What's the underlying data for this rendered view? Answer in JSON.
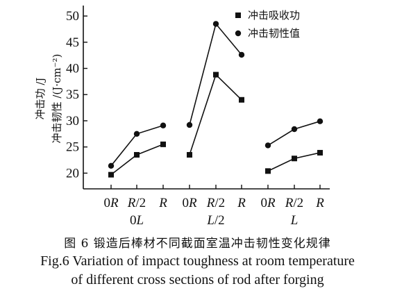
{
  "chart_data": {
    "type": "line",
    "ylabel_lines": [
      "冲击功 /J",
      "冲击韧性 /(J·cm⁻²)"
    ],
    "ylim": [
      17,
      52
    ],
    "yticks": [
      20,
      25,
      30,
      35,
      40,
      45,
      50
    ],
    "groups": [
      {
        "label": "0L",
        "categories": [
          "0R",
          "R/2",
          "R"
        ]
      },
      {
        "label": "L/2",
        "categories": [
          "0R",
          "R/2",
          "R"
        ]
      },
      {
        "label": "L",
        "categories": [
          "0R",
          "R/2",
          "R"
        ]
      }
    ],
    "series": [
      {
        "name": "冲击吸收功",
        "marker": "square",
        "values": [
          [
            19.7,
            23.5,
            25.5
          ],
          [
            23.5,
            38.8,
            34.0
          ],
          [
            20.4,
            22.8,
            23.9
          ]
        ]
      },
      {
        "name": "冲击韧性值",
        "marker": "circle",
        "values": [
          [
            21.4,
            27.5,
            29.1
          ],
          [
            29.2,
            48.5,
            42.6
          ],
          [
            25.3,
            28.4,
            29.9
          ]
        ]
      }
    ],
    "legend_position": "top-right",
    "grid": false
  },
  "caption": {
    "cn": "图 6  锻造后棒材不同截面室温冲击韧性变化规律",
    "en_line1": "Fig.6  Variation of impact toughness at room temperature",
    "en_line2": "of different cross sections of rod after forging"
  }
}
